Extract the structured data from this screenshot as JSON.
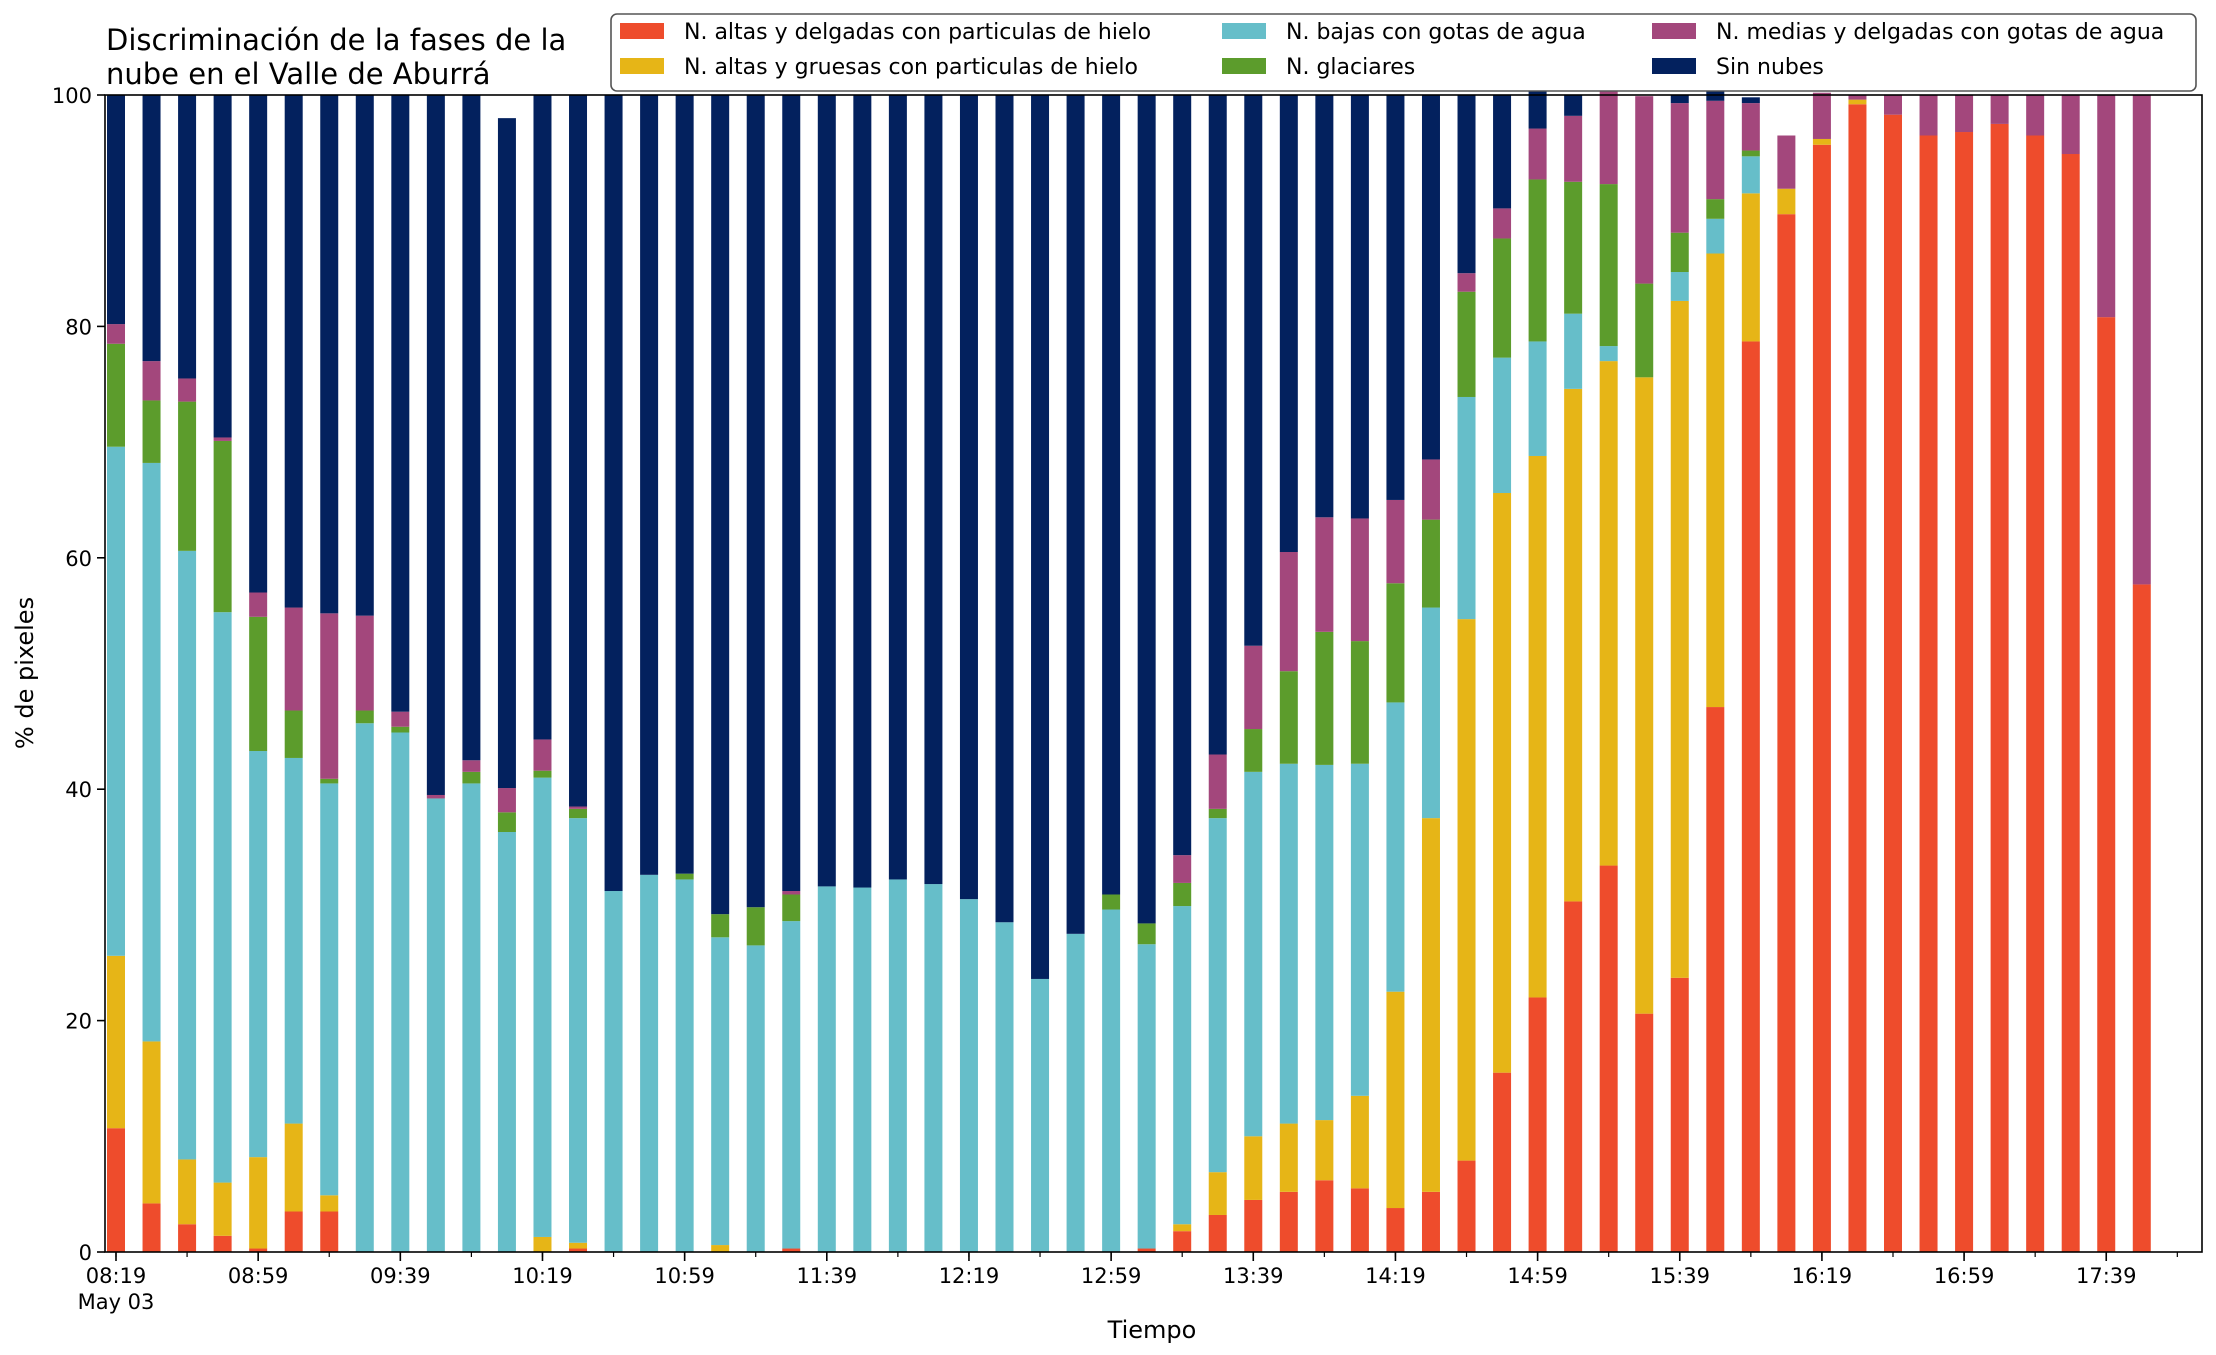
{
  "chart_data": {
    "type": "bar",
    "stacked": true,
    "title_lines": [
      "Discriminación de la fases de la",
      "nube en el Valle de Aburrá"
    ],
    "xlabel": "Tiempo",
    "ylabel": "% de pixeles",
    "ylim": [
      0,
      100
    ],
    "y_ticks": [
      "0",
      "20",
      "40",
      "60",
      "80",
      "100"
    ],
    "x_ticks": [
      {
        "index": 0,
        "label": "08:19",
        "sub": "May 03"
      },
      {
        "index": 4,
        "label": "08:59"
      },
      {
        "index": 8,
        "label": "09:39"
      },
      {
        "index": 12,
        "label": "10:19"
      },
      {
        "index": 16,
        "label": "10:59"
      },
      {
        "index": 20,
        "label": "11:39"
      },
      {
        "index": 24,
        "label": "12:19"
      },
      {
        "index": 28,
        "label": "12:59"
      },
      {
        "index": 32,
        "label": "13:39"
      },
      {
        "index": 36,
        "label": "14:19"
      },
      {
        "index": 40,
        "label": "14:59"
      },
      {
        "index": 44,
        "label": "15:39"
      },
      {
        "index": 48,
        "label": "16:19"
      },
      {
        "index": 52,
        "label": "16:59"
      },
      {
        "index": 56,
        "label": "17:39"
      }
    ],
    "categories": [
      "08:19",
      "08:29",
      "08:39",
      "08:49",
      "08:59",
      "09:09",
      "09:19",
      "09:29",
      "09:39",
      "09:49",
      "09:59",
      "10:09",
      "10:19",
      "10:29",
      "10:39",
      "10:49",
      "10:59",
      "11:09",
      "11:19",
      "11:29",
      "11:39",
      "11:49",
      "11:59",
      "12:09",
      "12:19",
      "12:29",
      "12:39",
      "12:49",
      "12:59",
      "13:09",
      "13:19",
      "13:29",
      "13:39",
      "13:49",
      "13:59",
      "14:09",
      "14:19",
      "14:29",
      "14:39",
      "14:49",
      "14:59",
      "15:09",
      "15:19",
      "15:29",
      "15:39",
      "15:49",
      "15:59",
      "16:09",
      "16:19",
      "16:29",
      "16:39",
      "16:49",
      "16:59",
      "17:09",
      "17:19",
      "17:29",
      "17:39",
      "17:49"
    ],
    "legend_position": "top-right",
    "legend_order": [
      0,
      1,
      2,
      3,
      4,
      5
    ],
    "series": [
      {
        "name": "N. altas y delgadas con particulas de hielo",
        "color": "#ee4c2c",
        "values": [
          10.7,
          4.2,
          2.4,
          1.4,
          0.3,
          3.5,
          3.5,
          0,
          0,
          0,
          0,
          0,
          0,
          0.3,
          0,
          0,
          0,
          0,
          0,
          0.3,
          0,
          0,
          0,
          0,
          0,
          0,
          0,
          0,
          0,
          0.3,
          1.8,
          3.2,
          4.5,
          5.2,
          6.2,
          5.5,
          3.8,
          5.2,
          7.9,
          15.5,
          22.0,
          30.3,
          33.4,
          20.6,
          23.7,
          47.1,
          78.7,
          89.7,
          95.7,
          99.2,
          98.3,
          96.5,
          96.8,
          97.5,
          96.5,
          94.9,
          80.8,
          57.7
        ]
      },
      {
        "name": "N. altas y gruesas con particulas de hielo",
        "color": "#e6b517",
        "values": [
          14.9,
          14.0,
          5.6,
          4.6,
          7.9,
          7.6,
          1.4,
          0,
          0,
          0,
          0,
          0,
          1.3,
          0.5,
          0,
          0,
          0,
          0.6,
          0,
          0,
          0,
          0,
          0,
          0,
          0,
          0,
          0,
          0,
          0,
          0,
          0.6,
          3.7,
          5.5,
          5.9,
          5.2,
          8.0,
          18.7,
          32.3,
          46.8,
          50.1,
          46.8,
          44.3,
          43.6,
          55.0,
          58.5,
          39.2,
          12.8,
          2.2,
          0.5,
          0.4,
          0,
          0,
          0,
          0,
          0,
          0,
          0,
          0
        ]
      },
      {
        "name": "N. bajas con gotas de agua",
        "color": "#66bec9",
        "values": [
          44.0,
          50.0,
          52.6,
          49.3,
          35.1,
          31.6,
          35.6,
          45.7,
          44.9,
          39.2,
          40.5,
          36.3,
          39.7,
          36.7,
          31.2,
          32.6,
          32.2,
          26.6,
          26.5,
          28.3,
          31.6,
          31.5,
          32.2,
          31.8,
          30.5,
          28.5,
          23.6,
          27.5,
          29.6,
          26.3,
          27.5,
          30.6,
          31.5,
          31.1,
          30.7,
          28.7,
          25.0,
          18.2,
          19.2,
          11.7,
          9.9,
          6.5,
          1.3,
          0,
          2.5,
          3.0,
          3.2,
          0,
          0,
          0,
          0,
          0,
          0,
          0,
          0,
          0,
          0,
          0
        ]
      },
      {
        "name": "N. glaciares",
        "color": "#5c9c2c",
        "values": [
          8.9,
          5.4,
          12.9,
          14.8,
          11.6,
          4.1,
          0.4,
          1.1,
          0.5,
          0,
          1.0,
          1.7,
          0.6,
          0.8,
          0,
          0,
          0.5,
          2.0,
          3.3,
          2.3,
          0,
          0,
          0,
          0,
          0,
          0,
          0,
          0,
          1.3,
          1.8,
          2.0,
          0.8,
          3.7,
          8.0,
          11.5,
          10.6,
          10.3,
          7.6,
          9.1,
          10.3,
          14.0,
          11.4,
          14.0,
          8.1,
          3.4,
          1.7,
          0.5,
          0,
          0,
          0,
          0,
          0,
          0,
          0,
          0,
          0,
          0,
          0
        ]
      },
      {
        "name": "N. medias y delgadas con gotas de agua",
        "color": "#a3477c",
        "values": [
          1.7,
          3.4,
          2.0,
          0.3,
          2.1,
          8.9,
          14.3,
          8.2,
          1.3,
          0.3,
          1.0,
          2.1,
          2.7,
          0.2,
          0,
          0,
          0,
          0,
          0,
          0.3,
          0,
          0,
          0,
          0,
          0,
          0,
          0,
          0,
          0,
          0,
          2.4,
          4.7,
          7.2,
          10.3,
          9.9,
          10.6,
          7.2,
          5.2,
          1.6,
          2.6,
          4.4,
          5.7,
          8.0,
          16.2,
          11.2,
          8.5,
          4.1,
          4.6,
          4.0,
          0.4,
          1.7,
          3.5,
          3.2,
          2.5,
          3.5,
          5.1,
          19.2,
          42.3
        ]
      },
      {
        "name": "Sin nubes",
        "color": "#03215e",
        "values": [
          19.8,
          23.0,
          24.5,
          29.6,
          43.0,
          44.3,
          44.8,
          45.0,
          53.3,
          60.5,
          57.5,
          57.9,
          55.7,
          61.5,
          68.8,
          67.4,
          67.3,
          70.8,
          70.2,
          68.8,
          68.4,
          68.5,
          67.8,
          68.2,
          69.5,
          71.5,
          76.4,
          72.5,
          69.1,
          71.6,
          65.7,
          57.0,
          47.6,
          39.5,
          36.5,
          36.6,
          35.0,
          31.5,
          15.4,
          9.8,
          3.7,
          1.8,
          0,
          0,
          0.7,
          2.5,
          0.5,
          0,
          0,
          0,
          0,
          0,
          0,
          0,
          0,
          0,
          0,
          0
        ]
      }
    ]
  }
}
